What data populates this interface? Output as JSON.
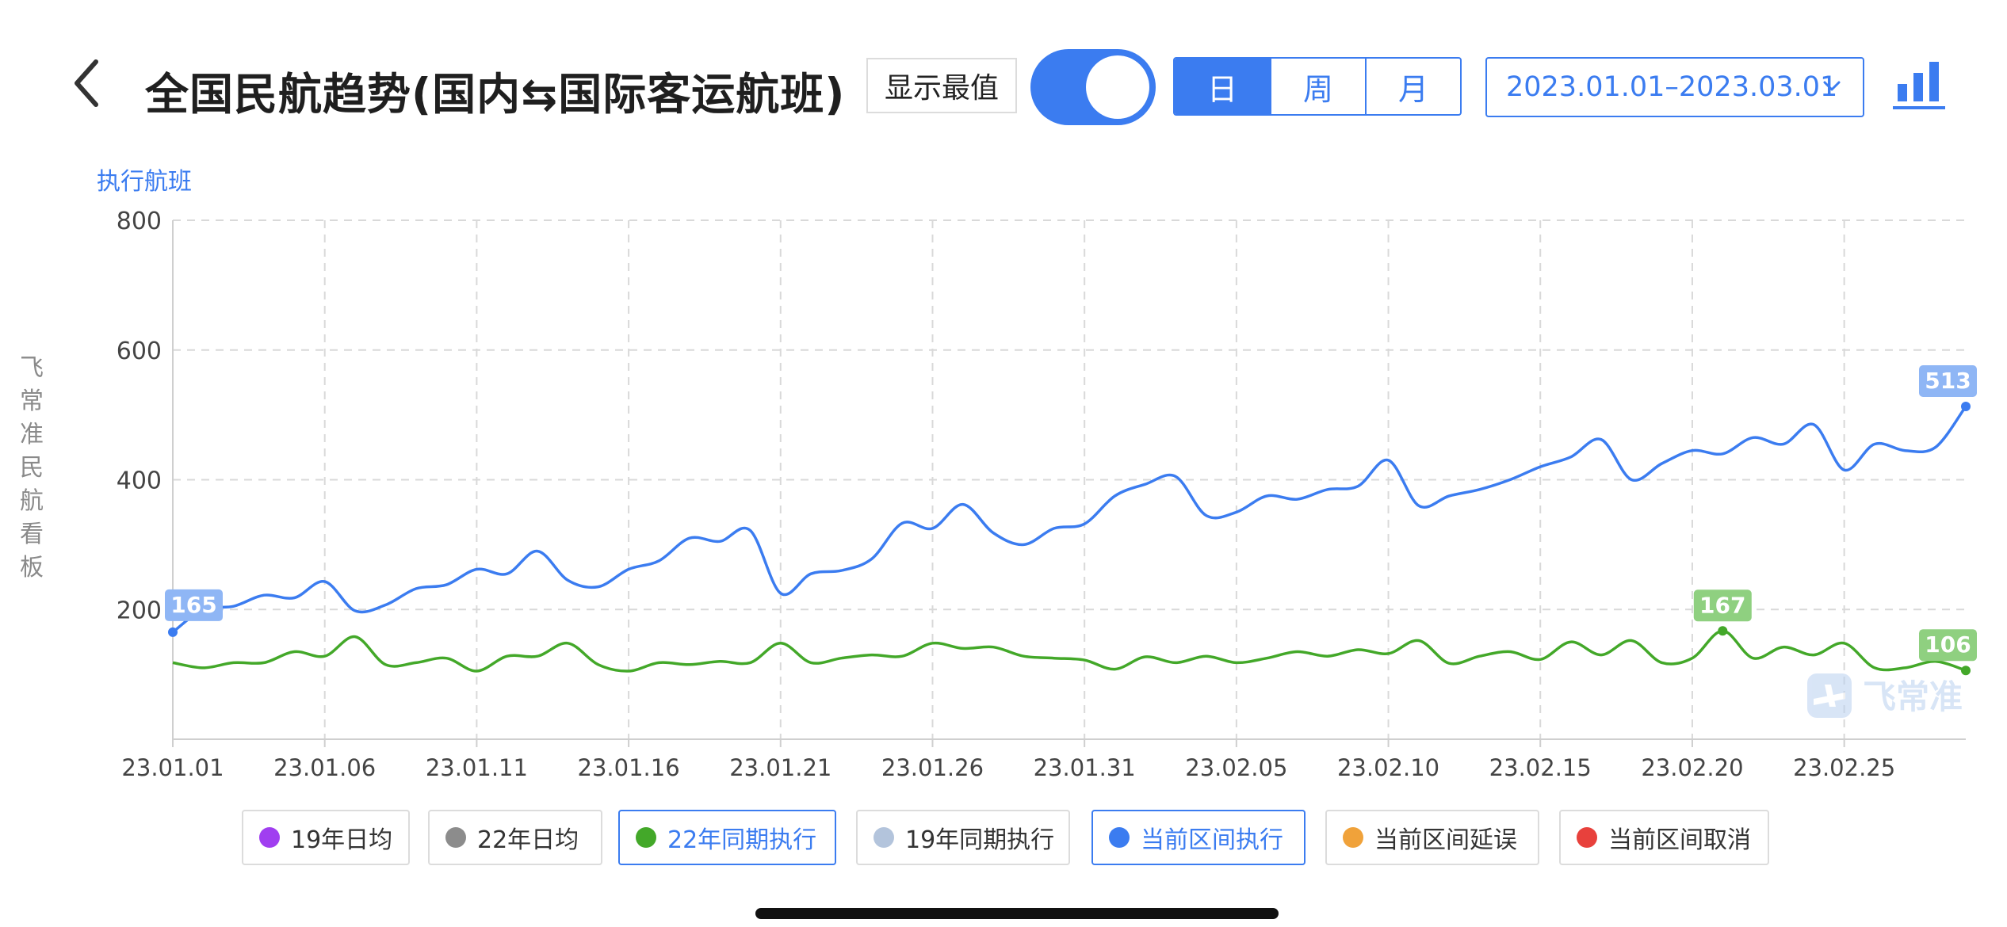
{
  "header": {
    "title": "全国民航趋势(国内⇆国际客运航班)",
    "extreme_toggle_label": "显示最值",
    "extreme_toggle_on": true,
    "period_tabs": [
      {
        "label": "日",
        "active": true
      },
      {
        "label": "周",
        "active": false
      },
      {
        "label": "月",
        "active": false
      }
    ],
    "date_range": "2023.01.01–2023.03.01",
    "icons": {
      "back": "chevron-left-icon",
      "date_dropdown": "chevron-down-icon",
      "chart_type": "bar-chart-icon"
    }
  },
  "side_watermark": "飞常准民航看板",
  "corner_watermark": "飞常准",
  "colors": {
    "accent": "#3b7cf0",
    "current_exec": "#3b7cf0",
    "exec_22": "#43a829",
    "avg_19": "#a03ef0",
    "avg_22": "#8c8c8c",
    "exec_19": "#b3c4dc",
    "delay": "#f0a23a",
    "cancel": "#e8413c",
    "label_blue_bg": "#8fb6f5",
    "label_green_bg": "#8fd080"
  },
  "chart_data": {
    "type": "line",
    "ylabel": "执行航班",
    "xlabel": "",
    "ylim": [
      0,
      800
    ],
    "yticks": [
      200,
      400,
      600,
      800
    ],
    "x_tick_labels": [
      "23.01.01",
      "23.01.06",
      "23.01.11",
      "23.01.16",
      "23.01.21",
      "23.01.26",
      "23.01.31",
      "23.02.05",
      "23.02.10",
      "23.02.15",
      "23.02.20",
      "23.02.25"
    ],
    "x": [
      "23.01.01",
      "23.01.02",
      "23.01.03",
      "23.01.04",
      "23.01.05",
      "23.01.06",
      "23.01.07",
      "23.01.08",
      "23.01.09",
      "23.01.10",
      "23.01.11",
      "23.01.12",
      "23.01.13",
      "23.01.14",
      "23.01.15",
      "23.01.16",
      "23.01.17",
      "23.01.18",
      "23.01.19",
      "23.01.20",
      "23.01.21",
      "23.01.22",
      "23.01.23",
      "23.01.24",
      "23.01.25",
      "23.01.26",
      "23.01.27",
      "23.01.28",
      "23.01.29",
      "23.01.30",
      "23.01.31",
      "23.02.01",
      "23.02.02",
      "23.02.03",
      "23.02.04",
      "23.02.05",
      "23.02.06",
      "23.02.07",
      "23.02.08",
      "23.02.09",
      "23.02.10",
      "23.02.11",
      "23.02.12",
      "23.02.13",
      "23.02.14",
      "23.02.15",
      "23.02.16",
      "23.02.17",
      "23.02.18",
      "23.02.19",
      "23.02.20",
      "23.02.21",
      "23.02.22",
      "23.02.23",
      "23.02.24",
      "23.02.25",
      "23.02.26",
      "23.02.27",
      "23.02.28",
      "23.03.01"
    ],
    "grid": true,
    "series": [
      {
        "name": "当前区间执行",
        "color": "#3b7cf0",
        "values": [
          165,
          200,
          205,
          222,
          218,
          243,
          198,
          207,
          232,
          238,
          262,
          255,
          290,
          245,
          235,
          262,
          275,
          310,
          305,
          322,
          225,
          255,
          260,
          278,
          333,
          325,
          362,
          318,
          300,
          325,
          332,
          375,
          393,
          405,
          345,
          350,
          375,
          370,
          385,
          390,
          430,
          360,
          375,
          385,
          400,
          420,
          435,
          462,
          400,
          425,
          445,
          440,
          465,
          455,
          485,
          415,
          455,
          445,
          450,
          513
        ],
        "labels": {
          "first": "165",
          "last": "513"
        }
      },
      {
        "name": "22年同期执行",
        "color": "#43a829",
        "values": [
          118,
          110,
          118,
          118,
          135,
          128,
          158,
          115,
          118,
          125,
          105,
          128,
          128,
          148,
          115,
          105,
          118,
          115,
          120,
          118,
          148,
          118,
          125,
          130,
          128,
          148,
          140,
          142,
          128,
          125,
          122,
          108,
          127,
          118,
          128,
          118,
          125,
          135,
          128,
          138,
          132,
          152,
          117,
          128,
          135,
          123,
          150,
          130,
          152,
          118,
          125,
          167,
          125,
          142,
          130,
          148,
          110,
          110,
          120,
          106
        ],
        "labels": {
          "max": "167",
          "last": "106"
        }
      }
    ],
    "legend": [
      {
        "name": "19年日均",
        "color": "#a03ef0",
        "active": false
      },
      {
        "name": "22年日均",
        "color": "#8c8c8c",
        "active": false
      },
      {
        "name": "22年同期执行",
        "color": "#43a829",
        "active": true
      },
      {
        "name": "19年同期执行",
        "color": "#b3c4dc",
        "active": false
      },
      {
        "name": "当前区间执行",
        "color": "#3b7cf0",
        "active": true
      },
      {
        "name": "当前区间延误",
        "color": "#f0a23a",
        "active": false
      },
      {
        "name": "当前区间取消",
        "color": "#e8413c",
        "active": false
      }
    ],
    "legend_position": "bottom"
  }
}
